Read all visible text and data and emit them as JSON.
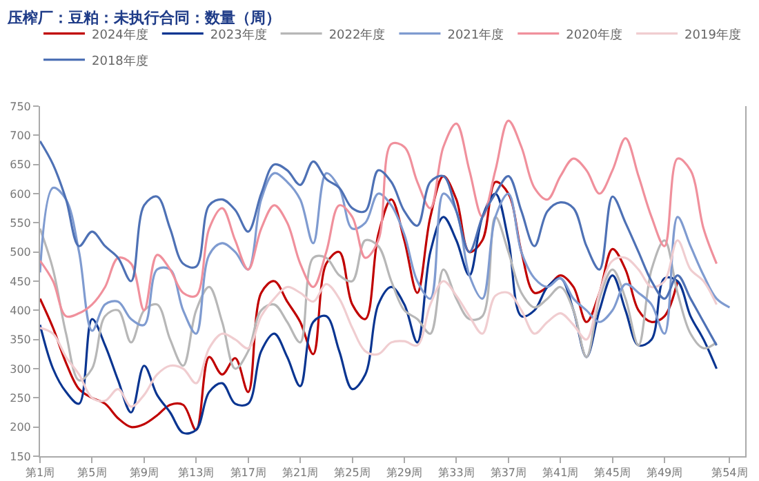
{
  "chart_data": {
    "type": "line",
    "title": "压榨厂：豆粕：未执行合同：数量（周）",
    "categories": [
      "第1周",
      null,
      null,
      null,
      "第5周",
      null,
      null,
      null,
      "第9周",
      null,
      null,
      null,
      "第13周",
      null,
      null,
      null,
      "第17周",
      null,
      null,
      null,
      "第21周",
      null,
      null,
      null,
      "第25周",
      null,
      null,
      null,
      "第29周",
      null,
      null,
      null,
      "第33周",
      null,
      null,
      null,
      "第37周",
      null,
      null,
      null,
      "第41周",
      null,
      null,
      null,
      "第45周",
      null,
      null,
      null,
      "第49周",
      null,
      null,
      null,
      null,
      "第54周"
    ],
    "series": [
      {
        "name": "2024年度",
        "color": "#c00000",
        "values": [
          420,
          370,
          310,
          265,
          250,
          240,
          215,
          200,
          205,
          220,
          238,
          238,
          195,
          320,
          290,
          318,
          260,
          430,
          450,
          415,
          380,
          325,
          480,
          500,
          410,
          385,
          530,
          590,
          520,
          430,
          560,
          630,
          590,
          500,
          520,
          620,
          600,
          500,
          430,
          440,
          460,
          440,
          380,
          430,
          505,
          470,
          400,
          380,
          390,
          450,
          null,
          null,
          null,
          null
        ]
      },
      {
        "name": "2023年度",
        "color": "#0a3591",
        "values": [
          375,
          300,
          260,
          240,
          385,
          340,
          280,
          225,
          305,
          255,
          225,
          190,
          195,
          260,
          275,
          240,
          240,
          330,
          360,
          320,
          270,
          380,
          390,
          330,
          265,
          290,
          410,
          440,
          410,
          345,
          500,
          560,
          520,
          460,
          560,
          600,
          520,
          390,
          400,
          440,
          455,
          400,
          320,
          400,
          460,
          400,
          340,
          350,
          455,
          450,
          390,
          350,
          300,
          null
        ]
      },
      {
        "name": "2022年度",
        "color": "#b7b7b7",
        "values": [
          540,
          470,
          360,
          280,
          300,
          390,
          400,
          345,
          400,
          410,
          350,
          305,
          400,
          440,
          380,
          300,
          330,
          400,
          410,
          380,
          345,
          490,
          490,
          460,
          450,
          520,
          510,
          450,
          400,
          385,
          360,
          470,
          420,
          385,
          390,
          560,
          500,
          430,
          405,
          420,
          440,
          400,
          320,
          420,
          470,
          420,
          340,
          470,
          520,
          430,
          360,
          335,
          345,
          null
        ]
      },
      {
        "name": "2021年度",
        "color": "#7f9bd0",
        "values": [
          465,
          610,
          590,
          500,
          365,
          410,
          415,
          385,
          375,
          470,
          470,
          400,
          360,
          495,
          515,
          500,
          470,
          590,
          635,
          620,
          590,
          515,
          635,
          610,
          540,
          550,
          600,
          580,
          530,
          450,
          420,
          600,
          570,
          460,
          420,
          560,
          600,
          500,
          455,
          440,
          455,
          420,
          400,
          380,
          400,
          445,
          430,
          410,
          360,
          560,
          510,
          460,
          420,
          405
        ]
      },
      {
        "name": "2020年度",
        "color": "#f0909c",
        "values": [
          485,
          450,
          390,
          395,
          410,
          440,
          490,
          480,
          400,
          495,
          470,
          430,
          425,
          540,
          575,
          520,
          470,
          540,
          580,
          550,
          480,
          440,
          500,
          580,
          560,
          490,
          520,
          685,
          680,
          620,
          575,
          680,
          720,
          640,
          560,
          640,
          725,
          680,
          610,
          590,
          630,
          660,
          640,
          600,
          640,
          695,
          630,
          560,
          510,
          660,
          640,
          540,
          480,
          null
        ]
      },
      {
        "name": "2019年度",
        "color": "#f0cdd0",
        "values": [
          370,
          360,
          320,
          290,
          250,
          245,
          265,
          235,
          255,
          290,
          305,
          300,
          275,
          335,
          360,
          350,
          335,
          390,
          420,
          440,
          430,
          415,
          445,
          420,
          370,
          330,
          325,
          345,
          347,
          340,
          410,
          450,
          425,
          390,
          360,
          425,
          430,
          400,
          360,
          380,
          395,
          375,
          350,
          430,
          485,
          490,
          470,
          440,
          450,
          520,
          470,
          450,
          410,
          null
        ]
      },
      {
        "name": "2018年度",
        "color": "#4e71b5",
        "values": [
          690,
          650,
          590,
          510,
          535,
          510,
          490,
          450,
          580,
          595,
          540,
          480,
          475,
          580,
          590,
          572,
          535,
          600,
          650,
          640,
          615,
          655,
          625,
          610,
          575,
          570,
          640,
          620,
          570,
          545,
          620,
          630,
          570,
          500,
          560,
          600,
          630,
          570,
          510,
          570,
          585,
          575,
          510,
          470,
          595,
          550,
          500,
          450,
          420,
          460,
          420,
          380,
          340,
          null
        ]
      }
    ],
    "ylim": [
      150,
      750
    ],
    "yticks": [
      150,
      200,
      250,
      300,
      350,
      400,
      450,
      500,
      550,
      600,
      650,
      700,
      750
    ],
    "grid": false,
    "legend": "top",
    "marker": "none",
    "line_style": "solid"
  }
}
